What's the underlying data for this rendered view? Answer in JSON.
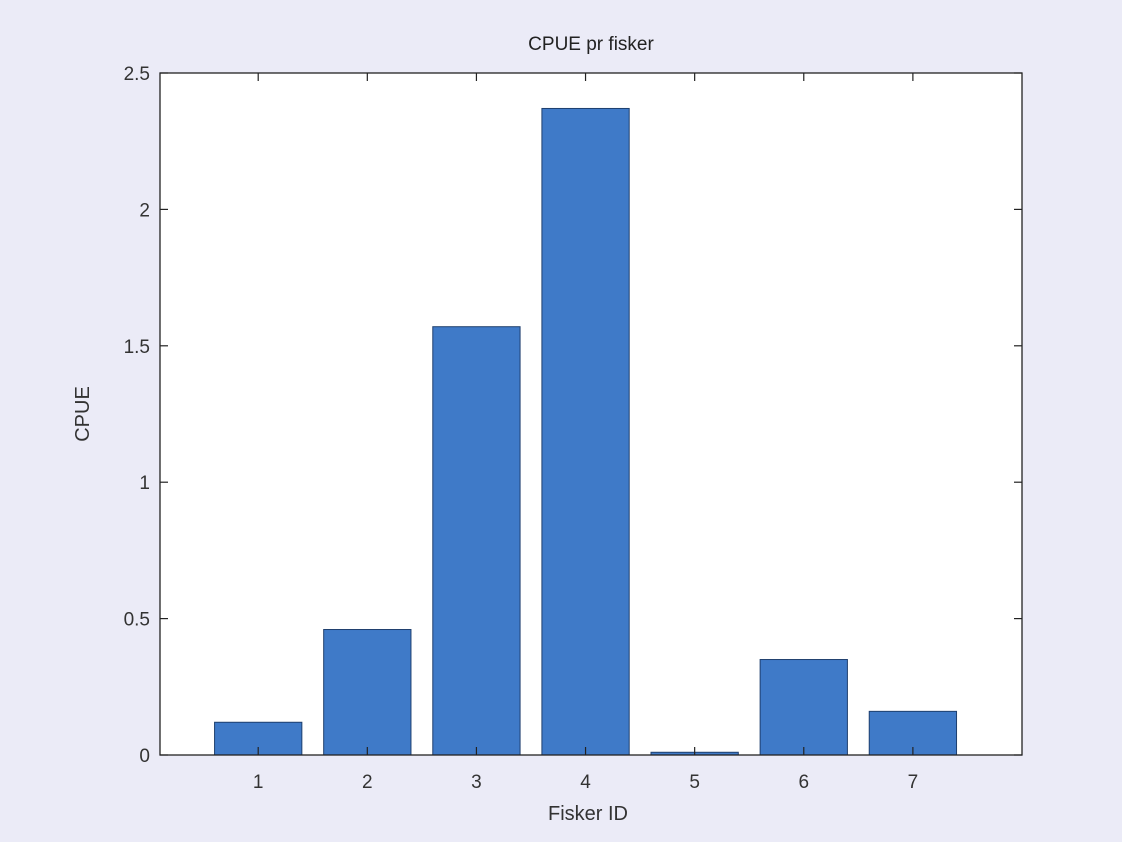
{
  "chart_data": {
    "type": "bar",
    "title": "CPUE pr fisker",
    "xlabel": "Fisker ID",
    "ylabel": "CPUE",
    "categories": [
      "1",
      "2",
      "3",
      "4",
      "5",
      "6",
      "7"
    ],
    "values": [
      0.12,
      0.46,
      1.57,
      2.37,
      0.01,
      0.35,
      0.16
    ],
    "ylim": [
      0,
      2.5
    ],
    "yticks": [
      0,
      0.5,
      1,
      1.5,
      2,
      2.5
    ],
    "ytick_labels": [
      "0",
      "0.5",
      "1",
      "1.5",
      "2",
      "2.5"
    ],
    "grid": false,
    "legend": "none",
    "bar_color": "#3f7ac8",
    "bar_edge_color": "#1e3f6e",
    "axes_background": "#ffffff",
    "figure_background": "#ebebf7"
  }
}
